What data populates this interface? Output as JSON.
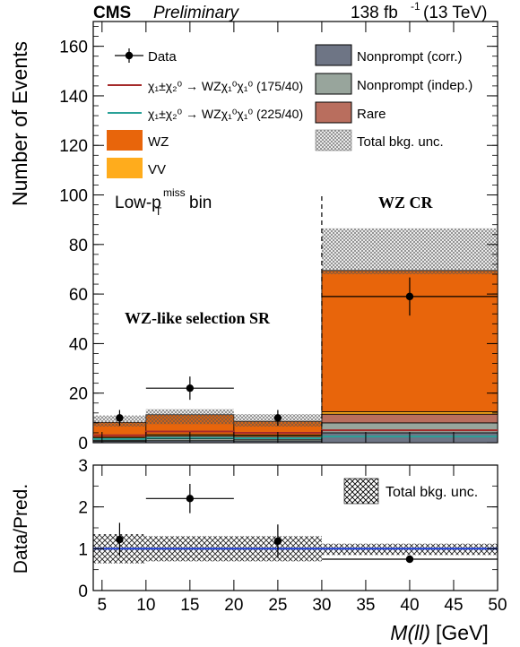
{
  "header": {
    "experiment": "CMS",
    "status": "Preliminary",
    "lumi": "138 fb",
    "lumi_exp": "-1",
    "energy": "(13 TeV)"
  },
  "annotations": {
    "bin_label_main": "Low-p",
    "bin_label_sub": "T",
    "bin_label_sup": "miss",
    "bin_label_rest": " bin",
    "sr_label": "WZ-like selection SR",
    "cr_label": "WZ CR"
  },
  "legend": {
    "data": "Data",
    "sig1": "χ₁±χ₂⁰ → WZχ₁⁰χ₁⁰ (175/40)",
    "sig2": "χ₁±χ₂⁰ → WZχ₁⁰χ₁⁰ (225/40)",
    "wz": "WZ",
    "vv": "VV",
    "np_corr": "Nonprompt (corr.)",
    "np_indep": "Nonprompt (indep.)",
    "rare": "Rare",
    "unc": "Total bkg. unc."
  },
  "colors": {
    "wz": "#e8650b",
    "vv": "#ffac1c",
    "np_corr": "#6e7585",
    "np_indep": "#98a59c",
    "rare": "#b96e5e",
    "sig1": "#a52a2a",
    "sig2": "#2aa198",
    "ratio_line": "#1f3fd6"
  },
  "chart_data": [
    {
      "type": "bar",
      "stacked": true,
      "ylabel": "Number of Events",
      "xlim": [
        4,
        50
      ],
      "ylim": [
        0,
        170
      ],
      "yticks": [
        0,
        20,
        40,
        60,
        80,
        100,
        120,
        140,
        160
      ],
      "bins": [
        [
          4,
          10
        ],
        [
          10,
          20
        ],
        [
          20,
          30
        ],
        [
          30,
          50
        ]
      ],
      "series": [
        {
          "name": "Nonprompt (corr.)",
          "values": [
            0.5,
            0.8,
            0.7,
            4.0
          ]
        },
        {
          "name": "Nonprompt (indep.)",
          "values": [
            0.5,
            0.8,
            0.7,
            4.0
          ]
        },
        {
          "name": "Rare",
          "values": [
            0.8,
            1.2,
            1.2,
            3.5
          ]
        },
        {
          "name": "VV",
          "values": [
            0.4,
            0.5,
            0.5,
            1.0
          ]
        },
        {
          "name": "WZ",
          "values": [
            6.0,
            8.0,
            5.5,
            57.0
          ]
        }
      ],
      "total_bkg_unc": [
        [
          6.5,
          11.0
        ],
        [
          7.5,
          13.5
        ],
        [
          6.5,
          11.5
        ],
        [
          68.0,
          86.5
        ]
      ],
      "signal": [
        {
          "name": "χ₁±χ₂⁰ → WZχ₁⁰χ₁⁰ (175/40)",
          "values": [
            3.0,
            4.5,
            4.0,
            5.0
          ]
        },
        {
          "name": "χ₁±χ₂⁰ → WZχ₁⁰χ₁⁰ (225/40)",
          "values": [
            1.5,
            2.0,
            1.8,
            2.5
          ]
        }
      ],
      "data": {
        "x": [
          7,
          15,
          25,
          40
        ],
        "y": [
          10,
          22,
          10,
          59
        ],
        "yerr": [
          3.2,
          4.7,
          3.2,
          7.7
        ],
        "xerr": [
          0,
          5,
          0,
          10
        ]
      },
      "divider_x": 30
    },
    {
      "type": "scatter",
      "ylabel": "Data/Pred.",
      "xlabel_main": "M(ll)",
      "xlabel_unit": "[GeV]",
      "xlim": [
        4,
        50
      ],
      "ylim": [
        0,
        3
      ],
      "yticks": [
        0,
        1,
        2,
        3
      ],
      "xticks": [
        5,
        10,
        15,
        20,
        25,
        30,
        35,
        40,
        45,
        50
      ],
      "unc_band": [
        [
          0.65,
          1.35
        ],
        [
          0.7,
          1.3
        ],
        [
          0.7,
          1.3
        ],
        [
          0.85,
          1.12
        ]
      ],
      "x": [
        7,
        15,
        25,
        40
      ],
      "y": [
        1.22,
        2.2,
        1.18,
        0.75
      ],
      "yerr": [
        0.4,
        0.35,
        0.4,
        0.08
      ],
      "xerr": [
        0,
        5,
        0,
        10
      ]
    }
  ]
}
